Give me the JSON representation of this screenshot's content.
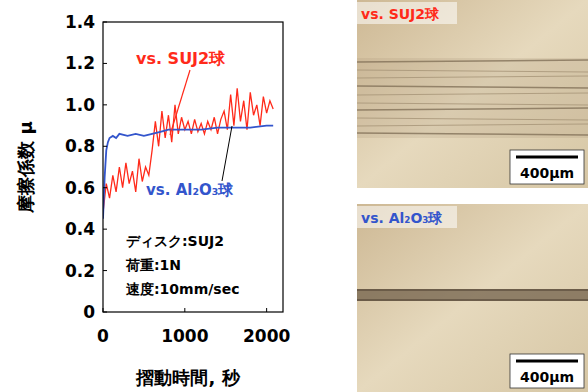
{
  "chart_data": {
    "type": "line",
    "x_label": "摺動時間, 秒",
    "y_label": "摩擦係数 μ",
    "xlim": [
      0,
      2200
    ],
    "xticks": [
      0,
      1000,
      2000
    ],
    "ylim": [
      0,
      1.4
    ],
    "yticks": [
      0,
      0.2,
      0.4,
      0.6,
      0.8,
      {
        "value": 1,
        "label": "1.0"
      },
      1.2,
      1.4
    ],
    "grid": false,
    "annotations": [
      "ディスク:SUJ2",
      "荷重:1N",
      "速度:10mm/sec"
    ],
    "series": [
      {
        "name": "vs. SUJ2球",
        "color": "#ff2a1a",
        "x": [
          0,
          40,
          80,
          120,
          160,
          200,
          240,
          280,
          320,
          360,
          400,
          440,
          480,
          520,
          560,
          600,
          640,
          680,
          720,
          760,
          800,
          840,
          880,
          920,
          960,
          1000,
          1040,
          1080,
          1120,
          1160,
          1200,
          1240,
          1280,
          1320,
          1360,
          1400,
          1440,
          1480,
          1520,
          1560,
          1600,
          1640,
          1680,
          1720,
          1760,
          1800,
          1840,
          1880,
          1920,
          1960,
          2000,
          2040,
          2080
        ],
        "values": [
          0.48,
          0.62,
          0.55,
          0.66,
          0.58,
          0.7,
          0.6,
          0.72,
          0.62,
          0.68,
          0.58,
          0.74,
          0.63,
          0.7,
          0.66,
          0.78,
          0.92,
          0.8,
          0.97,
          0.84,
          0.95,
          0.82,
          1.0,
          0.86,
          0.94,
          0.88,
          0.92,
          0.86,
          0.93,
          0.87,
          0.91,
          0.86,
          0.92,
          0.88,
          0.94,
          0.86,
          0.93,
          0.97,
          0.88,
          1.05,
          0.9,
          1.08,
          0.92,
          1.02,
          0.88,
          1.06,
          0.95,
          1.0,
          0.9,
          1.04,
          0.96,
          1.02,
          0.98
        ]
      },
      {
        "name": "vs. Al₂O₃球",
        "color": "#3355cc",
        "x": [
          0,
          20,
          40,
          60,
          80,
          120,
          160,
          200,
          300,
          400,
          500,
          600,
          700,
          800,
          900,
          1000,
          1200,
          1400,
          1600,
          1800,
          2000,
          2080
        ],
        "values": [
          0.45,
          0.65,
          0.78,
          0.82,
          0.84,
          0.85,
          0.84,
          0.86,
          0.85,
          0.86,
          0.85,
          0.86,
          0.87,
          0.88,
          0.88,
          0.88,
          0.88,
          0.89,
          0.89,
          0.89,
          0.9,
          0.9
        ]
      }
    ]
  },
  "images": [
    {
      "label": "vs. SUJ2球",
      "color": "#ff2a1a",
      "scale_bar": "400μm"
    },
    {
      "label": "vs. Al₂O₃球",
      "color": "#3355cc",
      "scale_bar": "400μm"
    }
  ]
}
